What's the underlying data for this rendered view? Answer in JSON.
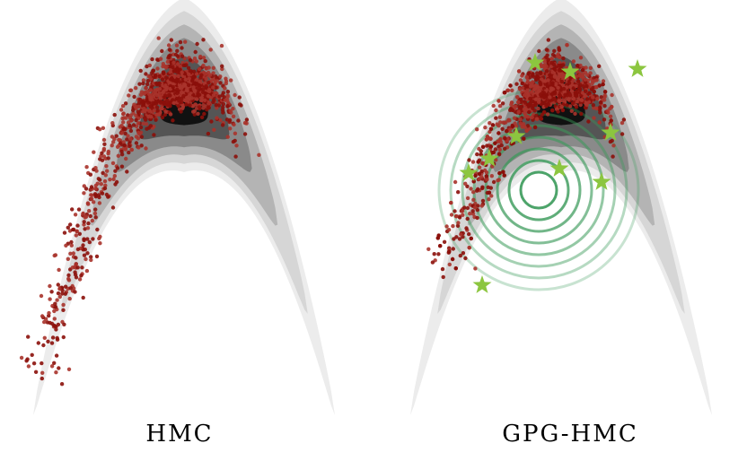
{
  "panels": [
    {
      "label": "HMC"
    },
    {
      "label": "GPG-HMC"
    }
  ]
}
